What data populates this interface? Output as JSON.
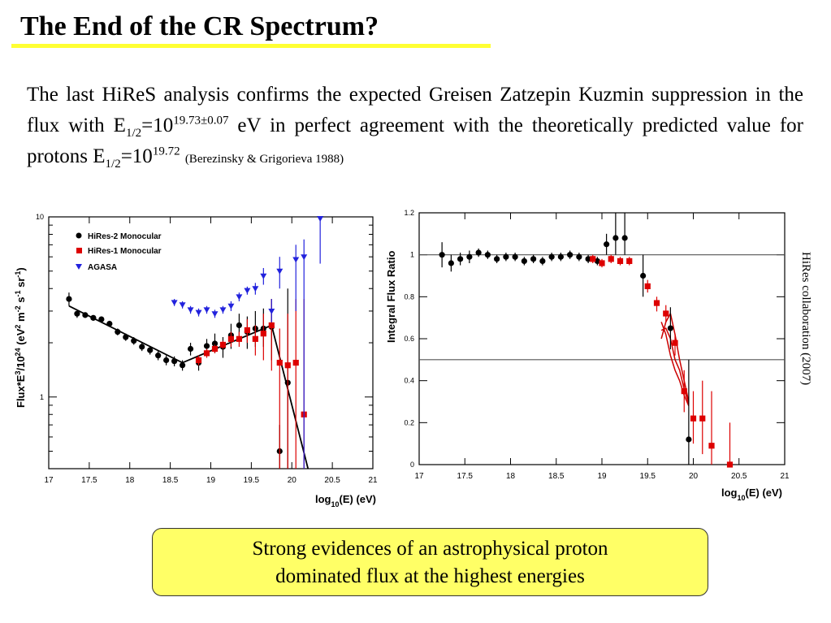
{
  "slide": {
    "title": "The End of the CR Spectrum?",
    "body": {
      "part1": "The last HiReS analysis confirms the expected Greisen Zatzepin Kuzmin suppression in the flux with E",
      "sub1": "1/2",
      "part2": "=10",
      "sup1": "19.73±0.07",
      "part3": " eV in perfect agreement with the theoretically predicted value for protons E",
      "sub2": "1/2",
      "part4": "=10",
      "sup2": "19.72",
      "citation": "(Berezinsky & Grigorieva 1988)"
    },
    "side_note": "HiRes collaboration  (2007)",
    "conclusion_line1": "Strong evidences of an astrophysical proton",
    "conclusion_line2": "dominated flux at the highest energies"
  },
  "colors": {
    "hires2": "#000000",
    "hires1": "#dd0000",
    "agasa": "#2222dd",
    "fit": "#000000",
    "band": "#cc0000",
    "highlight": "#ffff66"
  },
  "chart_data": [
    {
      "type": "scatter",
      "ylabel_parts": {
        "a": "Flux*E",
        "b": "3",
        "c": "/10",
        "d": "24",
        "e": " (eV",
        "f": "2",
        "g": " m",
        "h": "-2",
        "i": " s",
        "j": "-1",
        "k": " sr",
        "l": "-1",
        "m": ")"
      },
      "xlabel_parts": {
        "a": "log",
        "b": "10",
        "c": "(E) (eV)"
      },
      "xlim": [
        17,
        21
      ],
      "ylim": [
        0.4,
        10
      ],
      "yscale": "log",
      "xticks": [
        17,
        17.5,
        18,
        18.5,
        19,
        19.5,
        20,
        20.5,
        21
      ],
      "xtick_labels": [
        "17",
        "17.5",
        "18",
        "18.5",
        "19",
        "19.5",
        "20",
        "20.5",
        "21"
      ],
      "yticks": [
        1,
        10
      ],
      "ytick_labels": [
        "1",
        "10"
      ],
      "legend": [
        "HiRes-2 Monocular",
        "HiRes-1 Monocular",
        "AGASA"
      ],
      "series": [
        {
          "name": "HiRes-2 Monocular",
          "marker": "circle",
          "x": [
            17.25,
            17.35,
            17.45,
            17.55,
            17.65,
            17.75,
            17.85,
            17.95,
            18.05,
            18.15,
            18.25,
            18.35,
            18.45,
            18.55,
            18.65,
            18.75,
            18.85,
            18.95,
            19.05,
            19.15,
            19.25,
            19.35,
            19.45,
            19.55,
            19.65,
            19.75,
            19.85,
            19.95
          ],
          "y": [
            3.5,
            2.9,
            2.85,
            2.75,
            2.7,
            2.55,
            2.3,
            2.15,
            2.05,
            1.9,
            1.82,
            1.7,
            1.6,
            1.58,
            1.5,
            1.85,
            1.55,
            1.92,
            1.98,
            1.9,
            2.2,
            2.5,
            2.3,
            2.4,
            2.4,
            2.45,
            0.5,
            1.2
          ],
          "err": [
            [
              3.8,
              3.2
            ],
            [
              3.0,
              2.75
            ],
            [
              2.95,
              2.75
            ],
            [
              2.85,
              2.65
            ],
            [
              2.8,
              2.6
            ],
            [
              2.65,
              2.45
            ],
            [
              2.4,
              2.2
            ],
            [
              2.25,
              2.05
            ],
            [
              2.15,
              1.95
            ],
            [
              2.0,
              1.8
            ],
            [
              1.92,
              1.72
            ],
            [
              1.8,
              1.6
            ],
            [
              1.7,
              1.5
            ],
            [
              1.68,
              1.48
            ],
            [
              1.6,
              1.4
            ],
            [
              2.0,
              1.7
            ],
            [
              1.7,
              1.4
            ],
            [
              2.1,
              1.75
            ],
            [
              2.25,
              1.75
            ],
            [
              2.15,
              1.65
            ],
            [
              2.55,
              1.85
            ],
            [
              2.9,
              2.1
            ],
            [
              2.8,
              1.85
            ],
            [
              3.0,
              1.9
            ],
            [
              3.1,
              1.9
            ],
            [
              3.5,
              1.6
            ],
            [
              0.7,
              0.4
            ],
            [
              4.0,
              0.4
            ]
          ]
        },
        {
          "name": "HiRes-1 Monocular",
          "marker": "square",
          "x": [
            18.85,
            18.95,
            19.05,
            19.15,
            19.25,
            19.35,
            19.45,
            19.55,
            19.65,
            19.75,
            19.85,
            19.95,
            20.05,
            20.15
          ],
          "y": [
            1.6,
            1.75,
            1.85,
            1.95,
            2.1,
            2.1,
            2.35,
            2.1,
            2.25,
            2.5,
            1.55,
            1.5,
            1.55,
            0.8
          ],
          "err": [
            [
              1.7,
              1.5
            ],
            [
              1.85,
              1.65
            ],
            [
              1.95,
              1.75
            ],
            [
              2.05,
              1.85
            ],
            [
              2.3,
              1.9
            ],
            [
              2.3,
              1.9
            ],
            [
              2.7,
              2.0
            ],
            [
              2.5,
              1.7
            ],
            [
              2.9,
              1.6
            ],
            [
              3.5,
              1.4
            ],
            [
              2.4,
              0.4
            ],
            [
              2.9,
              0.4
            ],
            [
              3.5,
              0.4
            ],
            [
              3.5,
              0.4
            ]
          ]
        },
        {
          "name": "AGASA",
          "marker": "triangle-down",
          "x": [
            18.55,
            18.65,
            18.75,
            18.85,
            18.95,
            19.05,
            19.15,
            19.25,
            19.35,
            19.45,
            19.55,
            19.65,
            19.75,
            19.85,
            20.05,
            20.15,
            20.35
          ],
          "y": [
            3.35,
            3.25,
            3.05,
            2.95,
            3.05,
            2.9,
            3.05,
            3.2,
            3.6,
            3.9,
            4.0,
            4.7,
            3.0,
            5.0,
            5.8,
            6.0,
            9.8
          ],
          "err": [
            [
              3.5,
              3.2
            ],
            [
              3.4,
              3.1
            ],
            [
              3.2,
              2.9
            ],
            [
              3.1,
              2.8
            ],
            [
              3.2,
              2.9
            ],
            [
              3.05,
              2.75
            ],
            [
              3.2,
              2.9
            ],
            [
              3.4,
              3.0
            ],
            [
              3.8,
              3.4
            ],
            [
              4.1,
              3.7
            ],
            [
              4.3,
              3.7
            ],
            [
              5.2,
              4.2
            ],
            [
              3.5,
              2.6
            ],
            [
              6.0,
              4.0
            ],
            [
              7.0,
              3.0
            ],
            [
              7.5,
              0.4
            ],
            [
              10.0,
              5.5
            ]
          ]
        }
      ],
      "fit_line": {
        "x": [
          17.25,
          18.65,
          19.75,
          20.2
        ],
        "y": [
          3.2,
          1.55,
          2.5,
          0.38
        ]
      }
    },
    {
      "type": "scatter",
      "ylabel": "Integral Flux Ratio",
      "xlabel_parts": {
        "a": "log",
        "b": "10",
        "c": "(E) (eV)"
      },
      "xlim": [
        17,
        21
      ],
      "ylim": [
        0,
        1.2
      ],
      "xticks": [
        17,
        17.5,
        18,
        18.5,
        19,
        19.5,
        20,
        20.5,
        21
      ],
      "xtick_labels": [
        "17",
        "17.5",
        "18",
        "18.5",
        "19",
        "19.5",
        "20",
        "20.5",
        "21"
      ],
      "yticks": [
        0,
        0.2,
        0.4,
        0.6,
        0.8,
        1,
        1.2
      ],
      "ytick_labels": [
        "0",
        "0.2",
        "0.4",
        "0.6",
        "0.8",
        "1",
        "1.2"
      ],
      "hlines": [
        1.0,
        0.5
      ],
      "series": [
        {
          "name": "HiRes-2",
          "marker": "circle",
          "x": [
            17.25,
            17.35,
            17.45,
            17.55,
            17.65,
            17.75,
            17.85,
            17.95,
            18.05,
            18.15,
            18.25,
            18.35,
            18.45,
            18.55,
            18.65,
            18.75,
            18.85,
            18.95,
            19.05,
            19.15,
            19.25,
            19.45,
            19.75,
            19.95
          ],
          "y": [
            1.0,
            0.96,
            0.98,
            0.99,
            1.01,
            1.0,
            0.98,
            0.99,
            0.99,
            0.97,
            0.98,
            0.97,
            0.99,
            0.99,
            1.0,
            0.99,
            0.98,
            0.97,
            1.05,
            1.08,
            1.08,
            0.9,
            0.65,
            0.12
          ],
          "err": [
            [
              1.06,
              0.94
            ],
            [
              1.0,
              0.92
            ],
            [
              1.01,
              0.95
            ],
            [
              1.02,
              0.96
            ],
            [
              1.03,
              0.99
            ],
            [
              1.02,
              0.98
            ],
            [
              1.0,
              0.96
            ],
            [
              1.01,
              0.97
            ],
            [
              1.01,
              0.97
            ],
            [
              0.99,
              0.95
            ],
            [
              1.0,
              0.96
            ],
            [
              0.99,
              0.95
            ],
            [
              1.01,
              0.97
            ],
            [
              1.01,
              0.97
            ],
            [
              1.02,
              0.98
            ],
            [
              1.01,
              0.97
            ],
            [
              1.0,
              0.96
            ],
            [
              0.99,
              0.95
            ],
            [
              1.1,
              1.0
            ],
            [
              1.2,
              1.0
            ],
            [
              1.2,
              1.0
            ],
            [
              1.0,
              0.8
            ],
            [
              0.75,
              0.55
            ],
            [
              0.5,
              0.0
            ]
          ]
        },
        {
          "name": "HiRes-1",
          "marker": "square",
          "x": [
            18.9,
            19.0,
            19.1,
            19.2,
            19.3,
            19.5,
            19.6,
            19.7,
            19.8,
            19.9,
            20.0,
            20.1,
            20.2,
            20.4
          ],
          "y": [
            0.98,
            0.96,
            0.98,
            0.97,
            0.97,
            0.85,
            0.77,
            0.72,
            0.58,
            0.35,
            0.22,
            0.22,
            0.09,
            0.0
          ],
          "err": [
            [
              1.0,
              0.96
            ],
            [
              0.98,
              0.94
            ],
            [
              1.0,
              0.96
            ],
            [
              0.99,
              0.95
            ],
            [
              0.99,
              0.95
            ],
            [
              0.88,
              0.82
            ],
            [
              0.8,
              0.73
            ],
            [
              0.76,
              0.68
            ],
            [
              0.62,
              0.52
            ],
            [
              0.45,
              0.25
            ],
            [
              0.35,
              0.1
            ],
            [
              0.4,
              0.05
            ],
            [
              0.35,
              0.0
            ],
            [
              0.2,
              0.0
            ]
          ]
        }
      ],
      "band": {
        "x": [
          19.65,
          19.7,
          19.75,
          19.8,
          19.85,
          19.9,
          19.95
        ],
        "line_a": [
          0.6,
          0.68,
          0.72,
          0.62,
          0.5,
          0.4,
          0.3
        ],
        "line_b": [
          0.68,
          0.62,
          0.52,
          0.45,
          0.4,
          0.33,
          0.28
        ],
        "line_c": [
          0.64,
          0.65,
          0.6,
          0.5,
          0.45,
          0.36,
          0.29
        ]
      }
    }
  ]
}
